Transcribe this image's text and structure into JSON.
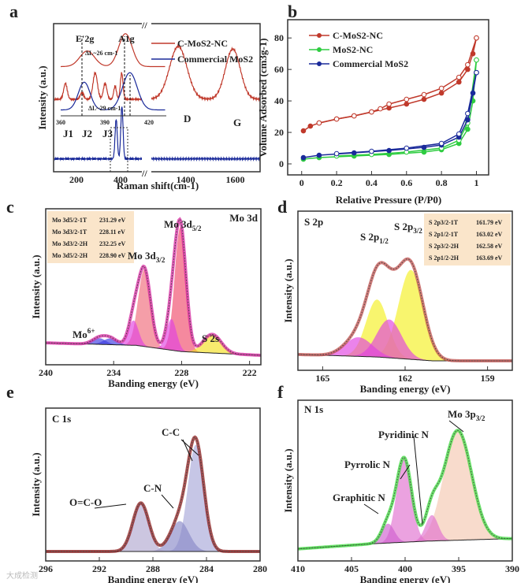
{
  "chart_data": [
    {
      "panel": "a",
      "type": "line",
      "xlabel": "Raman shift(cm-1)",
      "ylabel": "Intensity (a.u.)",
      "x_segments": [
        [
          100,
          500
        ],
        [
          1255,
          1700
        ]
      ],
      "xticks": [
        200,
        400,
        1400,
        1600
      ],
      "legend": {
        "placement": "top-right",
        "entries": [
          {
            "name": "C-MoS2-NC",
            "color": "#c0392b"
          },
          {
            "name": "Commercial MoS2",
            "color": "#1a2a9a"
          }
        ]
      },
      "annotations": [
        "J1",
        "J2",
        "J3",
        "D",
        "G"
      ],
      "series": [
        {
          "name": "C-MoS2-NC",
          "color": "#c0392b",
          "offset": 0.5,
          "peaks": [
            [
              150,
              8,
              0.12
            ],
            [
              225,
              8,
              0.05
            ],
            [
              285,
              10,
              0.2
            ],
            [
              330,
              8,
              0.12
            ],
            [
              375,
              6,
              0.1
            ],
            [
              405,
              6,
              0.2
            ],
            [
              1370,
              35,
              0.4
            ],
            [
              1590,
              30,
              0.38
            ]
          ]
        },
        {
          "name": "Commercial MoS2",
          "color": "#1a2a9a",
          "offset": 0.05,
          "peaks": [
            [
              380,
              5,
              0.3
            ],
            [
              406,
              5,
              0.4
            ]
          ]
        }
      ],
      "inset": {
        "xrange": [
          360,
          431
        ],
        "xticks": [
          360,
          390,
          420
        ],
        "labels": [
          "E'2g",
          "A1g"
        ],
        "notes": [
          {
            "text": "ΔL~26 cm-1",
            "color": "#c0392b"
          },
          {
            "text": "ΔL~29 cm-1",
            "color": "#1a2a9a"
          }
        ],
        "series": [
          {
            "name": "C-MoS2-NC",
            "color": "#c0392b",
            "offset": 0.55,
            "peaks": [
              [
                378,
                5,
                0.18
              ],
              [
                404,
                4.5,
                0.38
              ]
            ]
          },
          {
            "name": "Commercial MoS2",
            "color": "#1a2a9a",
            "offset": 0.05,
            "peaks": [
              [
                376,
                4,
                0.32
              ],
              [
                407,
                5,
                0.43
              ]
            ]
          }
        ]
      }
    },
    {
      "panel": "b",
      "type": "line",
      "xlabel": "Relative Pressure (P/P0)",
      "ylabel": "Volume Adsorbed (cm3g-1)",
      "xlim": [
        -0.08,
        1.07
      ],
      "ylim": [
        -7,
        91.6
      ],
      "xticks": [
        0.0,
        0.2,
        0.4,
        0.6,
        0.8,
        1.0
      ],
      "yticks": [
        0,
        20,
        40,
        60,
        80
      ],
      "legend": {
        "placement": "top-left"
      },
      "series": [
        {
          "name": "C-MoS2-NC",
          "color": "#c0392b",
          "adsorption": [
            [
              0.01,
              21
            ],
            [
              0.05,
              24
            ],
            [
              0.1,
              26
            ],
            [
              0.2,
              28.5
            ],
            [
              0.3,
              30.5
            ],
            [
              0.4,
              33
            ],
            [
              0.5,
              35.5
            ],
            [
              0.6,
              38
            ],
            [
              0.7,
              41
            ],
            [
              0.8,
              45
            ],
            [
              0.9,
              52
            ],
            [
              0.95,
              60
            ],
            [
              0.98,
              70
            ],
            [
              1.0,
              80
            ]
          ],
          "desorption": [
            [
              1.0,
              80
            ],
            [
              0.95,
              63
            ],
            [
              0.9,
              55
            ],
            [
              0.8,
              48
            ],
            [
              0.7,
              44
            ],
            [
              0.6,
              41
            ],
            [
              0.5,
              38
            ],
            [
              0.45,
              35
            ],
            [
              0.4,
              33
            ],
            [
              0.3,
              30.5
            ],
            [
              0.2,
              28.5
            ],
            [
              0.1,
              26
            ]
          ]
        },
        {
          "name": "MoS2-NC",
          "color": "#2ecc40",
          "adsorption": [
            [
              0.01,
              3
            ],
            [
              0.1,
              4
            ],
            [
              0.3,
              5
            ],
            [
              0.5,
              6
            ],
            [
              0.7,
              7.5
            ],
            [
              0.8,
              9
            ],
            [
              0.9,
              13
            ],
            [
              0.95,
              22
            ],
            [
              0.98,
              40
            ],
            [
              1.0,
              66
            ]
          ],
          "desorption": [
            [
              1.0,
              66
            ],
            [
              0.95,
              26
            ],
            [
              0.9,
              15
            ],
            [
              0.8,
              10
            ],
            [
              0.6,
              7.5
            ],
            [
              0.4,
              6
            ],
            [
              0.2,
              5
            ]
          ]
        },
        {
          "name": "Commercial MoS2",
          "color": "#1a2a9a",
          "adsorption": [
            [
              0.01,
              4
            ],
            [
              0.1,
              5.5
            ],
            [
              0.3,
              7
            ],
            [
              0.5,
              8.5
            ],
            [
              0.7,
              10.5
            ],
            [
              0.8,
              12
            ],
            [
              0.9,
              17
            ],
            [
              0.95,
              28
            ],
            [
              0.98,
              45
            ],
            [
              1.0,
              58
            ]
          ],
          "desorption": [
            [
              1.0,
              58
            ],
            [
              0.95,
              32
            ],
            [
              0.9,
              19
            ],
            [
              0.8,
              13
            ],
            [
              0.6,
              10
            ],
            [
              0.4,
              8
            ],
            [
              0.2,
              6.5
            ]
          ]
        }
      ]
    },
    {
      "panel": "c",
      "type": "line",
      "title": "Mo 3d",
      "xlabel": "Banding energy (eV)",
      "ylabel": "Intensity (a.u.)",
      "xlim": [
        240,
        221
      ],
      "xticks": [
        240,
        234,
        228,
        222
      ],
      "annotations": [
        {
          "t": "Mo 3d",
          "sub": "5/2"
        },
        {
          "t": "Mo 3d",
          "sub": "3/2"
        },
        {
          "t": "Mo",
          "sup": "6+"
        },
        {
          "t": "S 2s"
        }
      ],
      "table": [
        {
          "label": "Mo 3d5/2-1T",
          "value": "231.29 eV",
          "color": "#b03a2e"
        },
        {
          "label": "Mo 3d3/2-1T",
          "value": "228.11 eV",
          "color": "#b03a2e"
        },
        {
          "label": "Mo 3d3/2-2H",
          "value": "232.25 eV",
          "color": "#3aa0b0"
        },
        {
          "label": "Mo 3d5/2-2H",
          "value": "228.90 eV",
          "color": "#3aa0b0"
        }
      ],
      "envelope_color": "#d6249f",
      "components": [
        {
          "c": 231.29,
          "w": 0.55,
          "h": 0.62,
          "color": "#ef6a7a"
        },
        {
          "c": 228.11,
          "w": 0.5,
          "h": 1.0,
          "color": "#ef4a6a"
        },
        {
          "c": 232.25,
          "w": 0.45,
          "h": 0.2,
          "color": "#e040e0"
        },
        {
          "c": 228.9,
          "w": 0.45,
          "h": 0.25,
          "color": "#e040e0"
        },
        {
          "c": 235.3,
          "w": 0.6,
          "h": 0.05,
          "color": "#3a3ae0"
        },
        {
          "c": 234.3,
          "w": 0.6,
          "h": 0.05,
          "color": "#3a3ae0"
        },
        {
          "c": 225.3,
          "w": 0.8,
          "h": 0.15,
          "color": "#f5e020"
        }
      ],
      "baseline": [
        [
          240,
          0.1
        ],
        [
          232,
          0.08
        ],
        [
          228,
          0.03
        ],
        [
          221,
          0.0
        ]
      ]
    },
    {
      "panel": "d",
      "type": "line",
      "title": "S 2p",
      "xlabel": "Banding energy (eV)",
      "ylabel": "Intensity (a.u.)",
      "xlim": [
        165.9,
        158.1
      ],
      "xticks": [
        165,
        162,
        159
      ],
      "annotations": [
        {
          "t": "S 2p",
          "sub": "1/2"
        },
        {
          "t": "S 2p",
          "sub": "3/2"
        }
      ],
      "table": [
        {
          "label": "S 2p3/2-1T",
          "value": "161.79 eV",
          "color": "#b03a2e"
        },
        {
          "label": "S 2p1/2-1T",
          "value": "163.02 eV",
          "color": "#b03a2e"
        },
        {
          "label": "S 2p3/2-2H",
          "value": "162.58 eV",
          "color": "#6a9ab0"
        },
        {
          "label": "S 2p1/2-2H",
          "value": "163.69 eV",
          "color": "#6a9ab0"
        }
      ],
      "envelope_color": "#c0504d",
      "components": [
        {
          "c": 161.79,
          "w": 0.45,
          "h": 0.7,
          "color": "#f5f020"
        },
        {
          "c": 163.02,
          "w": 0.4,
          "h": 0.45,
          "color": "#f5f020"
        },
        {
          "c": 162.58,
          "w": 0.45,
          "h": 0.3,
          "color": "#e040e0"
        },
        {
          "c": 163.69,
          "w": 0.5,
          "h": 0.15,
          "color": "#e040e0"
        }
      ],
      "baseline": [
        [
          165.9,
          0.05
        ],
        [
          163,
          0.03
        ],
        [
          161,
          0.0
        ],
        [
          158.1,
          0.0
        ]
      ]
    },
    {
      "panel": "e",
      "type": "line",
      "title": "C 1s",
      "xlabel": "Banding energy (eV)",
      "ylabel": "Intensity (a.u.)",
      "xlim": [
        296,
        280
      ],
      "xticks": [
        296,
        292,
        288,
        284,
        280
      ],
      "annotations": [
        {
          "t": "C-C"
        },
        {
          "t": "C-N"
        },
        {
          "t": "O=C-O"
        }
      ],
      "envelope_color": "#8b1a1a",
      "components": [
        {
          "c": 284.8,
          "w": 0.6,
          "h": 0.88,
          "color": "#a8a8d8"
        },
        {
          "c": 286.0,
          "w": 0.7,
          "h": 0.25,
          "color": "#8888c8"
        },
        {
          "c": 288.9,
          "w": 0.6,
          "h": 0.4,
          "color": "#b0a8d0"
        }
      ],
      "baseline": [
        [
          296,
          0.0
        ],
        [
          280,
          0.0
        ]
      ]
    },
    {
      "panel": "f",
      "type": "line",
      "title": "N 1s",
      "xlabel": "Banding energy (eV)",
      "ylabel": "Intensity (a.u.)",
      "xlim": [
        410,
        390
      ],
      "xticks": [
        410,
        405,
        400,
        395,
        390
      ],
      "annotations": [
        {
          "t": "Mo 3p",
          "sub": "3/2"
        },
        {
          "t": "Pyridinic N"
        },
        {
          "t": "Pyrrolic N"
        },
        {
          "t": "Graphitic N"
        }
      ],
      "envelope_color": "#3ad83a",
      "components": [
        {
          "c": 395.1,
          "w": 1.3,
          "h": 0.85,
          "color": "#f5c8b0"
        },
        {
          "c": 397.5,
          "w": 0.6,
          "h": 0.2,
          "color": "#e070d0"
        },
        {
          "c": 400.1,
          "w": 0.7,
          "h": 0.65,
          "color": "#e070d0"
        },
        {
          "c": 401.6,
          "w": 0.6,
          "h": 0.15,
          "color": "#d060d0"
        }
      ],
      "baseline": [
        [
          410,
          0.02
        ],
        [
          403,
          0.06
        ],
        [
          398,
          0.08
        ],
        [
          390,
          0.1
        ]
      ]
    }
  ],
  "panel_letters": [
    "a",
    "b",
    "c",
    "d",
    "e",
    "f"
  ],
  "watermark": "大成检测"
}
